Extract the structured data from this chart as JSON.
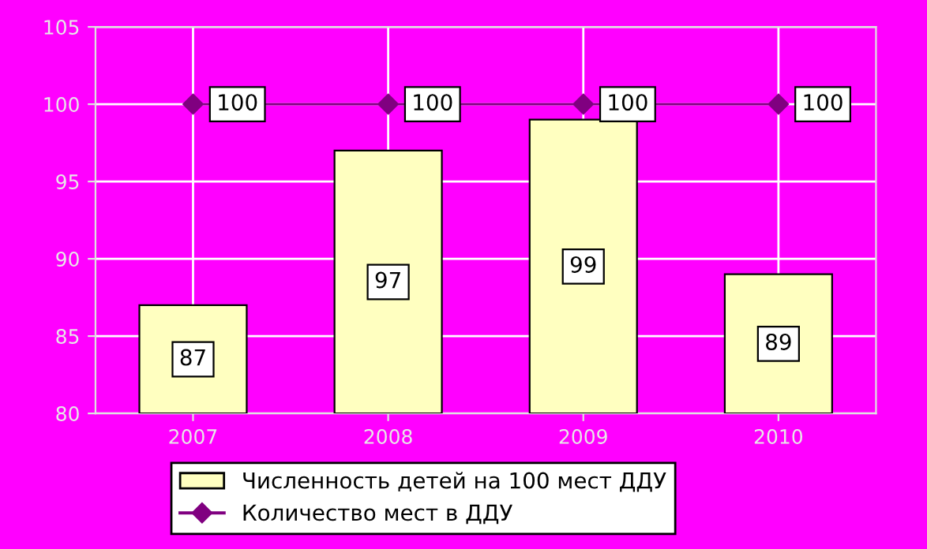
{
  "chart_data": {
    "type": "bar",
    "categories": [
      "2007",
      "2008",
      "2009",
      "2010"
    ],
    "series": [
      {
        "name": "Численность детей на 100 мест ДДУ",
        "color": "#ffffc0",
        "values": [
          87,
          97,
          99,
          89
        ]
      },
      {
        "name": "Количество мест в ДДУ",
        "type": "line",
        "color": "#800080",
        "values": [
          100,
          100,
          100,
          100
        ]
      }
    ],
    "ylim": [
      80,
      105
    ],
    "yticks": [
      80,
      85,
      90,
      95,
      100,
      105
    ],
    "grid": true,
    "legend": "bottom",
    "marker": "diamond",
    "data_labels": true
  }
}
